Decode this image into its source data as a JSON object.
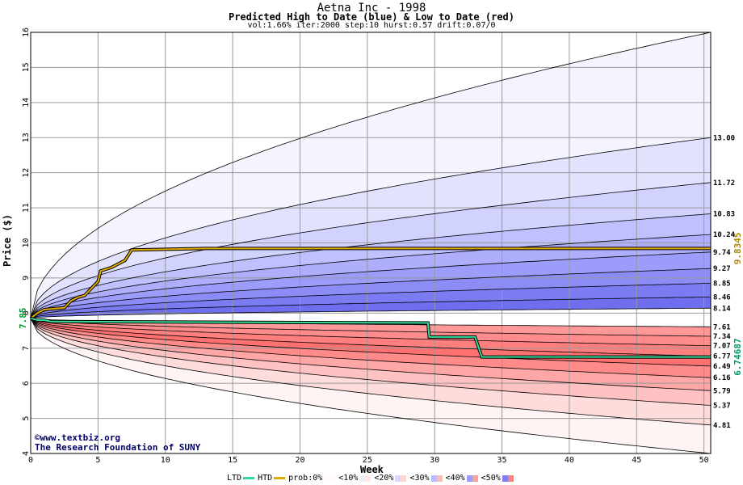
{
  "header": {
    "title": "Aetna Inc - 1998",
    "subtitle": "Predicted High to Date (blue) &  Low to Date (red)",
    "params": "vol:1.66% iter:2000 step:10 hurst:0.57 drift:0.07/0"
  },
  "credits": {
    "line1": "©www.textbiz.org",
    "line2": "The Research Foundation of SUNY"
  },
  "legend": {
    "ltd": "LTD",
    "htd": "HTD",
    "prob": "prob:0%",
    "bands": [
      "<10%",
      "<20%",
      "<30%",
      "<40%",
      "<50%"
    ]
  },
  "colors": {
    "htd_line": "#ddaa00",
    "ltd_line": "#33dd99",
    "start_label": "#009933",
    "final_htd_label": "#aa8800",
    "final_ltd_label": "#009966"
  },
  "chart_data": {
    "type": "area",
    "title": "Aetna Inc - 1998",
    "subtitle": "Predicted High to Date (blue) &  Low to Date (red)",
    "xlabel": "Week",
    "ylabel": "Price ($)",
    "xlim": [
      0,
      50.5
    ],
    "ylim": [
      4,
      16
    ],
    "x_ticks": [
      0,
      5,
      10,
      15,
      20,
      25,
      30,
      35,
      40,
      45,
      50
    ],
    "y_ticks": [
      4,
      5,
      6,
      7,
      8,
      9,
      10,
      11,
      12,
      13,
      14,
      15,
      16
    ],
    "grid": true,
    "start_price": 7.85,
    "start_label": "7.85",
    "high_band_levels": [
      16.0,
      13.0,
      11.72,
      10.83,
      10.24,
      9.74,
      9.27,
      8.85,
      8.46,
      8.14
    ],
    "high_band_labels": [
      "",
      "13.00",
      "11.72",
      "10.83",
      "10.24",
      "9.74",
      "9.27",
      "8.85",
      "8.46",
      "8.14"
    ],
    "low_band_levels": [
      7.61,
      7.34,
      7.07,
      6.77,
      6.49,
      6.16,
      5.79,
      5.37,
      4.81,
      4.0
    ],
    "low_band_labels": [
      "7.61",
      "7.34",
      "7.07",
      "6.77",
      "6.49",
      "6.16",
      "5.79",
      "5.37",
      "4.81",
      ""
    ],
    "htd_series": {
      "name": "HTD",
      "final_label": "9.8345",
      "points": [
        [
          0,
          7.85
        ],
        [
          0.5,
          8.0
        ],
        [
          1,
          8.1
        ],
        [
          2.5,
          8.15
        ],
        [
          3,
          8.35
        ],
        [
          3.5,
          8.45
        ],
        [
          4,
          8.5
        ],
        [
          4.5,
          8.7
        ],
        [
          5,
          8.9
        ],
        [
          5.2,
          9.2
        ],
        [
          6,
          9.3
        ],
        [
          6.5,
          9.4
        ],
        [
          7,
          9.5
        ],
        [
          7.5,
          9.8
        ],
        [
          13,
          9.84
        ],
        [
          50.5,
          9.84
        ]
      ]
    },
    "ltd_series": {
      "name": "LTD",
      "final_label": "6.74687",
      "points": [
        [
          0,
          7.85
        ],
        [
          0.5,
          7.8
        ],
        [
          1,
          7.8
        ],
        [
          1.5,
          7.76
        ],
        [
          29.5,
          7.72
        ],
        [
          29.6,
          7.32
        ],
        [
          33,
          7.32
        ],
        [
          33.5,
          6.75
        ],
        [
          50.5,
          6.75
        ]
      ]
    }
  }
}
